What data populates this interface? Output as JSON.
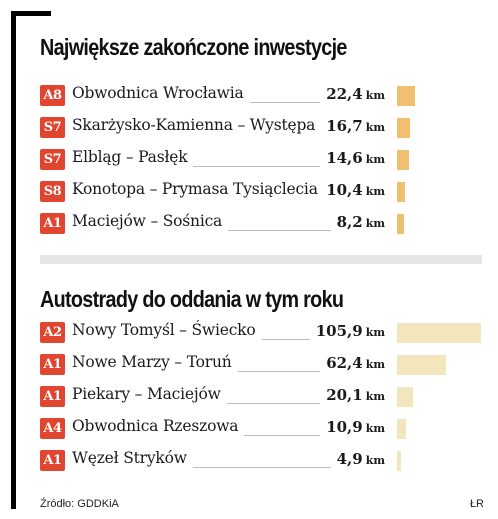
{
  "colors": {
    "badge": "#e0452f",
    "bar_completed": "#f0c070",
    "bar_planned": "#f3e6bd"
  },
  "chart_data": [
    {
      "type": "bar",
      "title": "Największe zakończone inwestycje",
      "unit": "km",
      "categories": [
        "Obwodnica Wrocławia",
        "Skarżysko-Kamienna – Występa",
        "Elbląg – Pasłęk",
        "Konotopa – Prymasa Tysiąclecia",
        "Maciejów – Sośnica"
      ],
      "roads": [
        "A8",
        "S7",
        "S7",
        "S8",
        "A1"
      ],
      "values": [
        22.4,
        16.7,
        14.6,
        10.4,
        8.2
      ],
      "value_labels": [
        "22,4",
        "16,7",
        "14,6",
        "10,4",
        "8,2"
      ]
    },
    {
      "type": "bar",
      "title": "Autostrady do oddania w tym roku",
      "unit": "km",
      "categories": [
        "Nowy Tomyśl – Świecko",
        "Nowe Marzy – Toruń",
        "Piekary – Maciejów",
        "Obwodnica Rzeszowa",
        "Węzeł Stryków"
      ],
      "roads": [
        "A2",
        "A1",
        "A1",
        "A4",
        "A1"
      ],
      "values": [
        105.9,
        62.4,
        20.1,
        10.9,
        4.9
      ],
      "value_labels": [
        "105,9",
        "62,4",
        "20,1",
        "10,9",
        "4,9"
      ]
    }
  ],
  "footer": {
    "source": "Źródło: GDDKiA",
    "credit": "ŁR"
  }
}
